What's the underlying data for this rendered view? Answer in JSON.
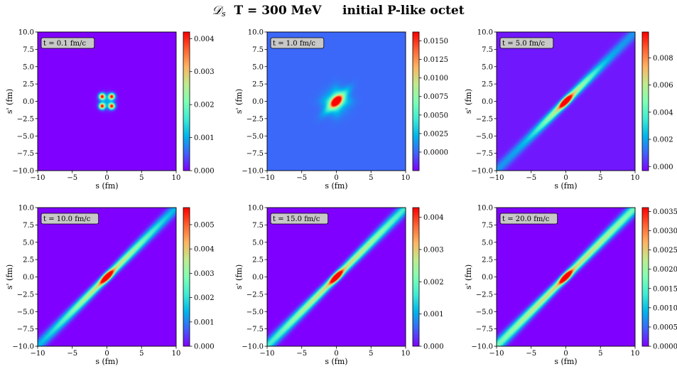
{
  "title": {
    "symbol": "𝒟",
    "subscript": "s",
    "rest": "  T = 300 MeV     initial P-like octet"
  },
  "colormap": [
    "#8000ff",
    "#4062fa",
    "#00b5eb",
    "#40ecd4",
    "#80ffb4",
    "#c0eb8d",
    "#ffb360",
    "#ff6230",
    "#ff0000"
  ],
  "chart_data": [
    {
      "type": "heatmap",
      "annotation": "t = 0.1 fm/c",
      "xlabel": "s (fm)",
      "ylabel": "s' (fm)",
      "xlim": [
        -10,
        10
      ],
      "ylim": [
        -10,
        10
      ],
      "xticks": [
        "−10",
        "−5",
        "0",
        "5",
        "10"
      ],
      "yticks": [
        "10.0",
        "7.5",
        "5.0",
        "2.5",
        "0.0",
        "−2.5",
        "−5.0",
        "−7.5",
        "−10.0"
      ],
      "colorbar": {
        "min": 0.0,
        "max": 0.0042,
        "tick_values": [
          0.0,
          0.001,
          0.002,
          0.003,
          0.004
        ],
        "tick_labels": [
          "0.000",
          "0.001",
          "0.002",
          "0.003",
          "0.004"
        ]
      },
      "pattern": "four-peaks",
      "peak_centers": [
        [
          -0.7,
          0.7
        ],
        [
          0.7,
          0.7
        ],
        [
          -0.7,
          -0.7
        ],
        [
          0.7,
          -0.7
        ]
      ]
    },
    {
      "type": "heatmap",
      "annotation": "t = 1.0 fm/c",
      "xlabel": "s (fm)",
      "ylabel": "s' (fm)",
      "xlim": [
        -10,
        10
      ],
      "ylim": [
        -10,
        10
      ],
      "xticks": [
        "−10",
        "−5",
        "0",
        "5",
        "10"
      ],
      "yticks": [
        "10.0",
        "7.5",
        "5.0",
        "2.5",
        "0.0",
        "−2.5",
        "−5.0",
        "−7.5",
        "−10.0"
      ],
      "colorbar": {
        "min": -0.0025,
        "max": 0.0162,
        "tick_values": [
          0.0,
          0.0025,
          0.005,
          0.0075,
          0.01,
          0.0125,
          0.015
        ],
        "tick_labels": [
          "0.0000",
          "0.0025",
          "0.0050",
          "0.0075",
          "0.0100",
          "0.0125",
          "0.0150"
        ]
      },
      "pattern": "star",
      "peak_value": 0.0162
    },
    {
      "type": "heatmap",
      "annotation": "t = 5.0 fm/c",
      "xlabel": "s (fm)",
      "ylabel": "s' (fm)",
      "xlim": [
        -10,
        10
      ],
      "ylim": [
        -10,
        10
      ],
      "xticks": [
        "−10",
        "−5",
        "0",
        "5",
        "10"
      ],
      "yticks": [
        "10.0",
        "7.5",
        "5.0",
        "2.5",
        "0.0",
        "−2.5",
        "−5.0",
        "−7.5",
        "−10.0"
      ],
      "colorbar": {
        "min": -0.0003,
        "max": 0.0099,
        "tick_values": [
          0.0,
          0.002,
          0.004,
          0.006,
          0.008
        ],
        "tick_labels": [
          "0.000",
          "0.002",
          "0.004",
          "0.006",
          "0.008"
        ]
      },
      "pattern": "diagonal-ridge",
      "peak_value": 0.0099
    },
    {
      "type": "heatmap",
      "annotation": "t = 10.0 fm/c",
      "xlabel": "s (fm)",
      "ylabel": "s' (fm)",
      "xlim": [
        -10,
        10
      ],
      "ylim": [
        -10,
        10
      ],
      "xticks": [
        "−10",
        "−5",
        "0",
        "5",
        "10"
      ],
      "yticks": [
        "10.0",
        "7.5",
        "5.0",
        "2.5",
        "0.0",
        "−2.5",
        "−5.0",
        "−7.5",
        "−10.0"
      ],
      "colorbar": {
        "min": 0.0,
        "max": 0.0057,
        "tick_values": [
          0.0,
          0.001,
          0.002,
          0.003,
          0.004,
          0.005
        ],
        "tick_labels": [
          "0.000",
          "0.001",
          "0.002",
          "0.003",
          "0.004",
          "0.005"
        ]
      },
      "pattern": "diagonal-ridge",
      "peak_value": 0.0057
    },
    {
      "type": "heatmap",
      "annotation": "t = 15.0 fm/c",
      "xlabel": "s (fm)",
      "ylabel": "s' (fm)",
      "xlim": [
        -10,
        10
      ],
      "ylim": [
        -10,
        10
      ],
      "xticks": [
        "−10",
        "−5",
        "0",
        "5",
        "10"
      ],
      "yticks": [
        "10.0",
        "7.5",
        "5.0",
        "2.5",
        "0.0",
        "−2.5",
        "−5.0",
        "−7.5",
        "−10.0"
      ],
      "colorbar": {
        "min": 0.0,
        "max": 0.0043,
        "tick_values": [
          0.0,
          0.001,
          0.002,
          0.003,
          0.004
        ],
        "tick_labels": [
          "0.000",
          "0.001",
          "0.002",
          "0.003",
          "0.004"
        ]
      },
      "pattern": "diagonal-ridge",
      "peak_value": 0.0043
    },
    {
      "type": "heatmap",
      "annotation": "t = 20.0 fm/c",
      "xlabel": "s (fm)",
      "ylabel": "s' (fm)",
      "xlim": [
        -10,
        10
      ],
      "ylim": [
        -10,
        10
      ],
      "xticks": [
        "−10",
        "−5",
        "0",
        "5",
        "10"
      ],
      "yticks": [
        "10.0",
        "7.5",
        "5.0",
        "2.5",
        "0.0",
        "−2.5",
        "−5.0",
        "−7.5",
        "−10.0"
      ],
      "colorbar": {
        "min": 0.0,
        "max": 0.0036,
        "tick_values": [
          0.0,
          0.0005,
          0.001,
          0.0015,
          0.002,
          0.0025,
          0.003,
          0.0035
        ],
        "tick_labels": [
          "0.0000",
          "0.0005",
          "0.0010",
          "0.0015",
          "0.0020",
          "0.0025",
          "0.0030",
          "0.0035"
        ]
      },
      "pattern": "diagonal-ridge",
      "peak_value": 0.0036
    }
  ]
}
